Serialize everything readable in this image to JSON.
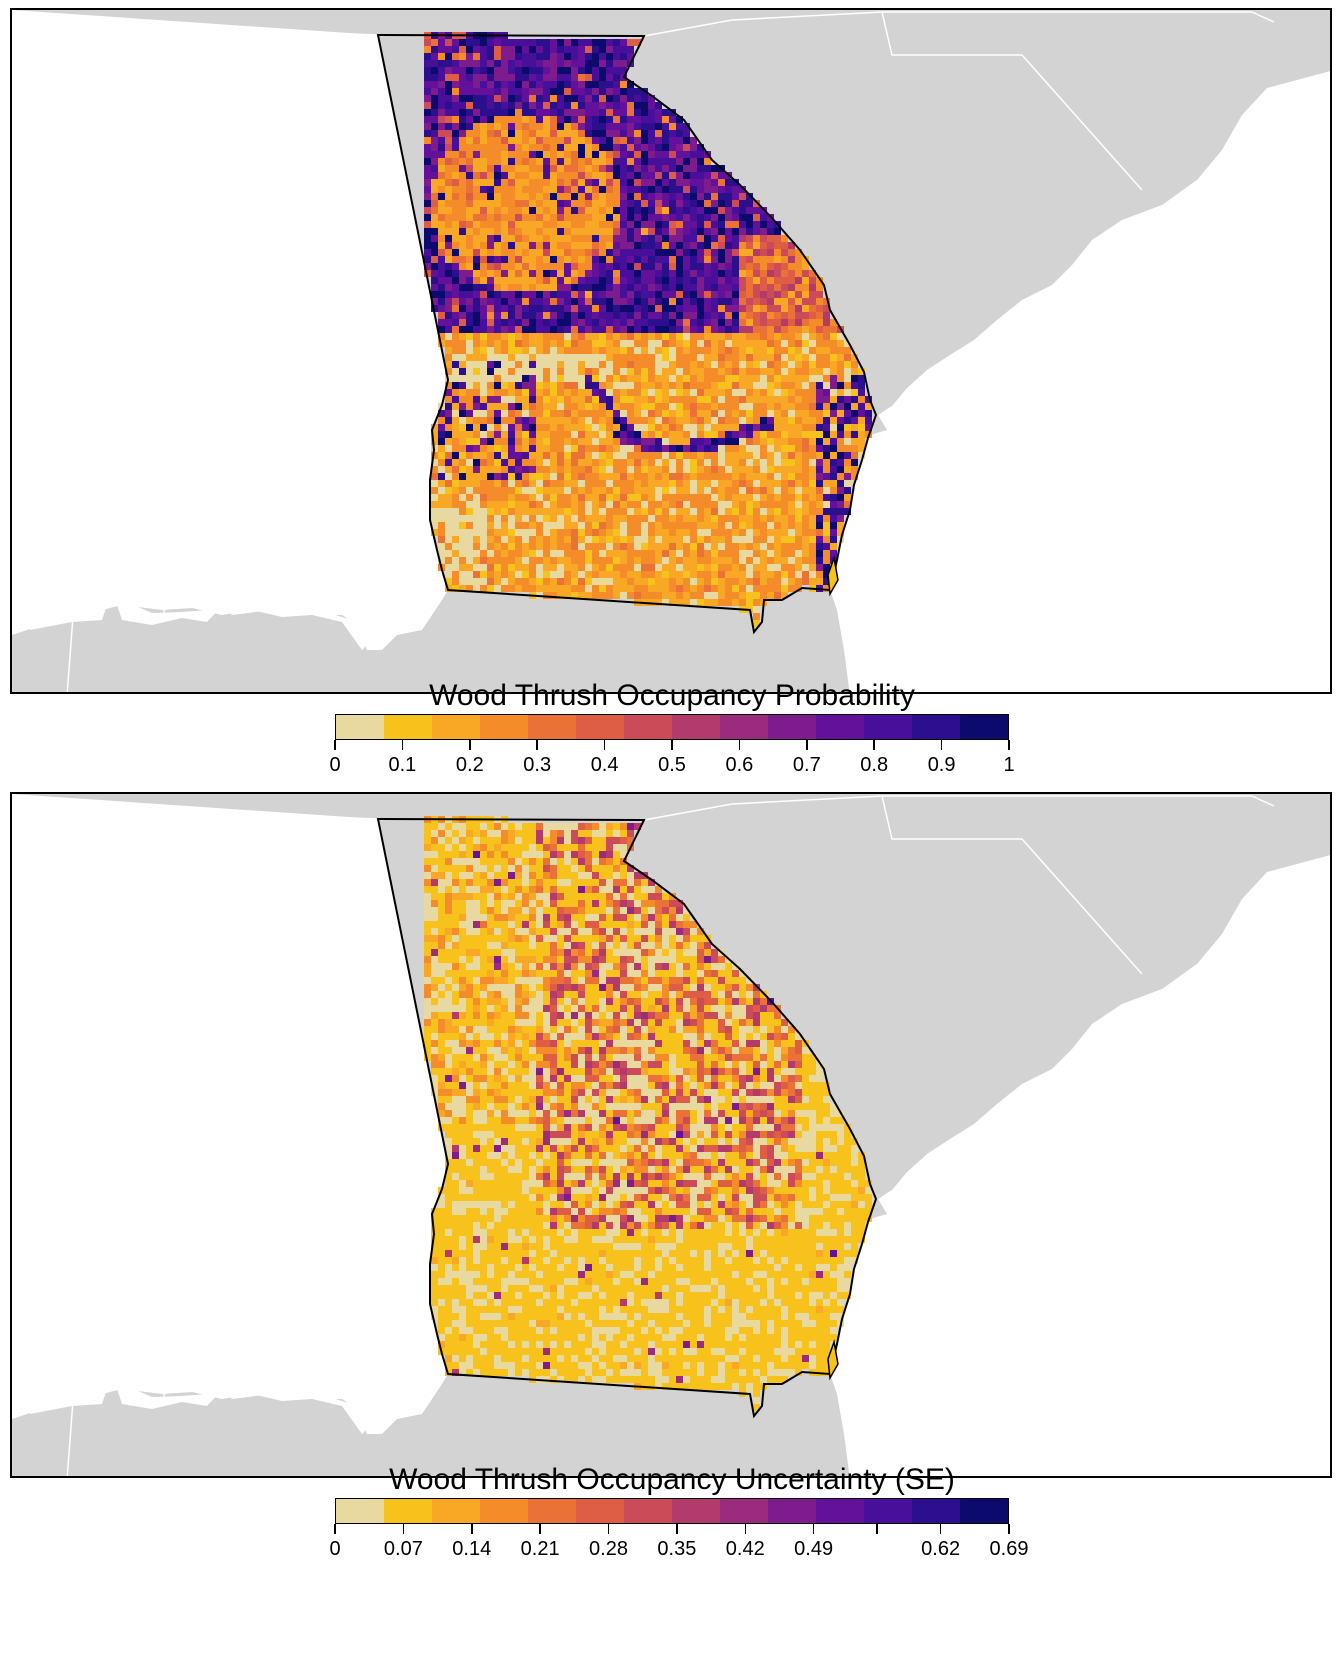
{
  "maps": [
    {
      "id": "occupancy",
      "legend_title": "Wood Thrush Occupancy Probability",
      "tick_labels": [
        "0",
        "0.1",
        "0.2",
        "0.3",
        "0.4",
        "0.5",
        "0.6",
        "0.7",
        "0.8",
        "0.9",
        "1"
      ],
      "tick_values": [
        0,
        0.1,
        0.2,
        0.3,
        0.4,
        0.5,
        0.6,
        0.7,
        0.8,
        0.9,
        1
      ],
      "range": [
        0,
        1
      ],
      "dominant_north": "high (0.8-1)",
      "dominant_south": "low (0.1-0.3)"
    },
    {
      "id": "uncertainty",
      "legend_title": "Wood Thrush Occupancy Uncertainty (SE)",
      "tick_labels": [
        "0",
        "0.07",
        "0.14",
        "0.21",
        "0.28",
        "0.35",
        "0.42",
        "0.49",
        "",
        "0.62",
        "0.69"
      ],
      "tick_values": [
        0,
        0.07,
        0.14,
        0.21,
        0.28,
        0.35,
        0.42,
        0.49,
        0.555,
        0.62,
        0.69
      ],
      "range": [
        0,
        0.69
      ],
      "dominant_north": "moderate (0.07-0.28)",
      "dominant_south": "low (0-0.14)"
    }
  ],
  "palette": [
    "#e8d9a0",
    "#f7c21c",
    "#f9a825",
    "#f48c2a",
    "#ea7236",
    "#dd5d45",
    "#cb4b58",
    "#b33b6b",
    "#9a2b7d",
    "#7e1b8d",
    "#63109a",
    "#48109a",
    "#2b0f8c",
    "#0d0a6e"
  ],
  "colors": {
    "background_land": "#d3d3d3",
    "state_borders": "#ffffff",
    "water": "#ffffff",
    "outline": "#000000"
  }
}
